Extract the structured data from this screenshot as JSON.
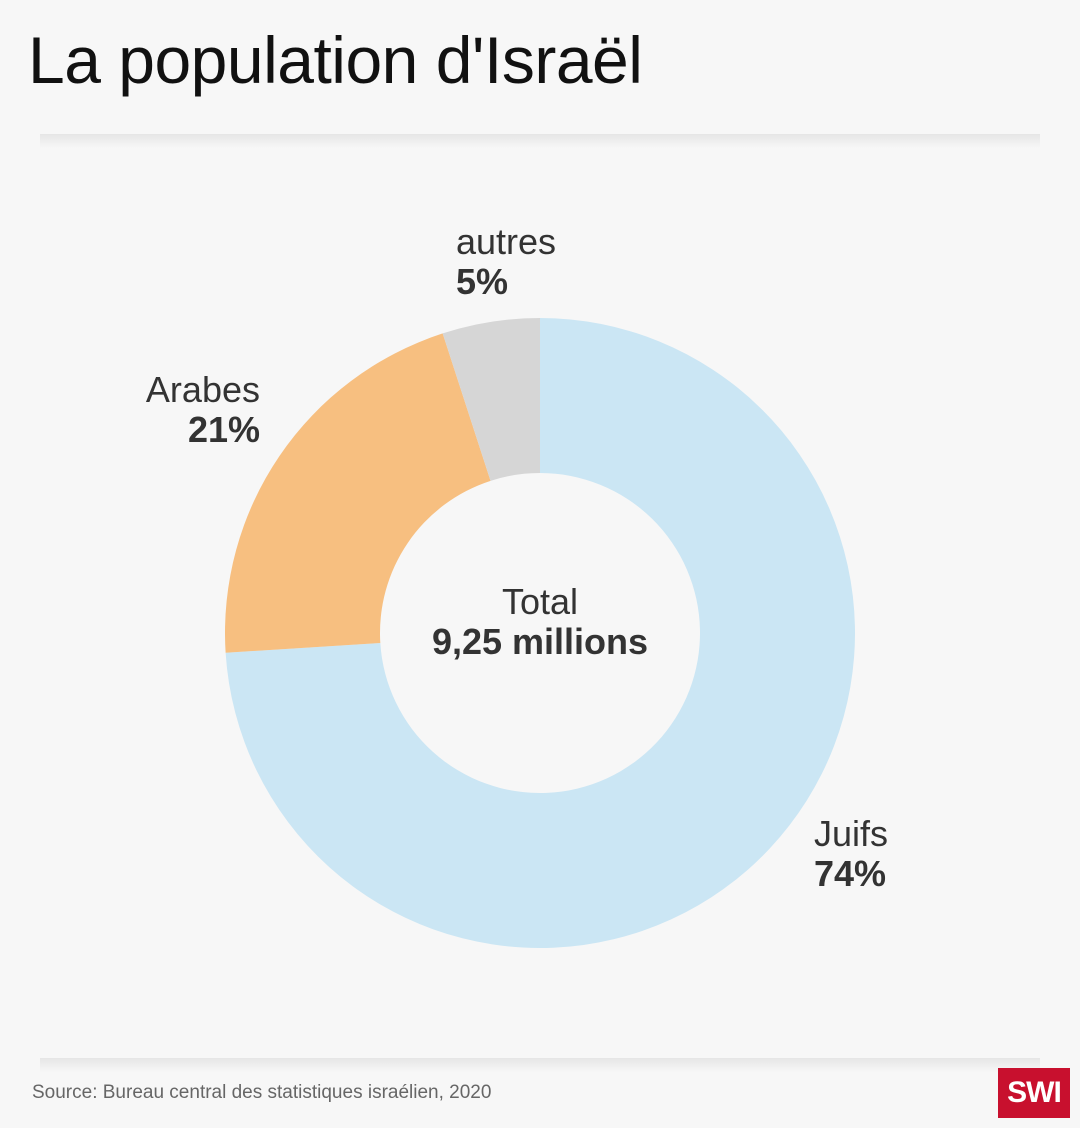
{
  "title": "La population d'Israël",
  "source": "Source: Bureau central des statistiques israélien, 2020",
  "logo_text": "SWI",
  "center": {
    "title": "Total",
    "value": "9,25 millions"
  },
  "colors": {
    "Juifs": "#cbe6f4",
    "Arabes": "#f7bf80",
    "autres": "#d6d6d6",
    "logo": "#c8102e"
  },
  "chart_data": {
    "type": "pie",
    "title": "La population d'Israël",
    "donut": true,
    "total_label": "Total",
    "total_value": "9,25 millions",
    "slices": [
      {
        "name": "Juifs",
        "value": 74,
        "label": "74%"
      },
      {
        "name": "Arabes",
        "value": 21,
        "label": "21%"
      },
      {
        "name": "autres",
        "value": 5,
        "label": "5%"
      }
    ]
  }
}
